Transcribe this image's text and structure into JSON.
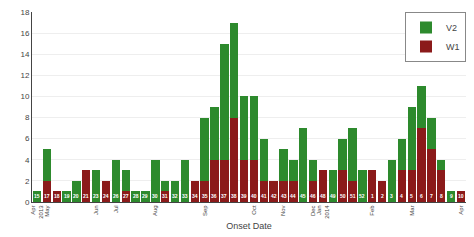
{
  "chart_data": {
    "type": "bar",
    "stacked": true,
    "xlabel": "Onset Date",
    "categories": [
      "Apr\n2013",
      "May",
      null,
      null,
      null,
      null,
      "Jun",
      null,
      "Jul",
      null,
      null,
      null,
      "Aug",
      null,
      null,
      null,
      null,
      "Sep",
      null,
      null,
      null,
      null,
      "Oct",
      null,
      null,
      "Nov",
      null,
      null,
      "Dec",
      "Jan\n2014",
      null,
      null,
      null,
      null,
      "Feb",
      null,
      null,
      null,
      "Mar",
      null,
      null,
      null,
      null,
      "Apr"
    ],
    "series": [
      {
        "name": "W1",
        "color": "#8b1a1a",
        "values": [
          0,
          2,
          1,
          0,
          0,
          3,
          0,
          2,
          0,
          1,
          0,
          0,
          0,
          1,
          0,
          0,
          2,
          2,
          4,
          4,
          8,
          4,
          4,
          2,
          2,
          2,
          2,
          0,
          2,
          3,
          0,
          3,
          2,
          0,
          3,
          2,
          0,
          3,
          3,
          7,
          5,
          3,
          0,
          1
        ]
      },
      {
        "name": "V2",
        "color": "#2d8a2d",
        "values": [
          1,
          3,
          0,
          1,
          2,
          0,
          3,
          0,
          4,
          2,
          1,
          1,
          4,
          1,
          2,
          4,
          0,
          6,
          5,
          11,
          9,
          6,
          6,
          4,
          0,
          3,
          2,
          7,
          2,
          0,
          3,
          3,
          5,
          3,
          0,
          0,
          4,
          3,
          6,
          4,
          3,
          1,
          1,
          0
        ]
      }
    ],
    "annotations": [
      {
        "text": "15",
        "x": 0
      },
      {
        "text": "17",
        "x": 1
      },
      {
        "text": "18",
        "x": 2
      },
      {
        "text": "19",
        "x": 3
      },
      {
        "text": "20",
        "x": 4
      },
      {
        "text": "21",
        "x": 5
      },
      {
        "text": "23",
        "x": 6
      },
      {
        "text": "24",
        "x": 7
      },
      {
        "text": "26",
        "x": 8
      },
      {
        "text": "27",
        "x": 9
      },
      {
        "text": "28",
        "x": 10
      },
      {
        "text": "29",
        "x": 11
      },
      {
        "text": "30",
        "x": 12
      },
      {
        "text": "31",
        "x": 13
      },
      {
        "text": "32",
        "x": 14
      },
      {
        "text": "33",
        "x": 15
      },
      {
        "text": "34",
        "x": 16
      },
      {
        "text": "35",
        "x": 17
      },
      {
        "text": "36",
        "x": 18
      },
      {
        "text": "37",
        "x": 19
      },
      {
        "text": "38",
        "x": 20
      },
      {
        "text": "39",
        "x": 21
      },
      {
        "text": "40",
        "x": 22
      },
      {
        "text": "41",
        "x": 23
      },
      {
        "text": "42",
        "x": 24
      },
      {
        "text": "43",
        "x": 25
      },
      {
        "text": "44",
        "x": 26
      },
      {
        "text": "45",
        "x": 27
      },
      {
        "text": "46",
        "x": 28
      },
      {
        "text": "48",
        "x": 29
      },
      {
        "text": "49",
        "x": 30
      },
      {
        "text": "50",
        "x": 31
      },
      {
        "text": "51",
        "x": 32
      },
      {
        "text": "52",
        "x": 33
      },
      {
        "text": "1",
        "x": 34
      },
      {
        "text": "2",
        "x": 35
      },
      {
        "text": "3",
        "x": 36
      },
      {
        "text": "4",
        "x": 37
      },
      {
        "text": "5",
        "x": 38
      },
      {
        "text": "6",
        "x": 39
      },
      {
        "text": "7",
        "x": 40
      },
      {
        "text": "8",
        "x": 41
      },
      {
        "text": "9",
        "x": 42
      },
      {
        "text": "10",
        "x": 43
      }
    ],
    "ylim": [
      0,
      18
    ],
    "yticks": [
      0,
      2,
      4,
      6,
      8,
      10,
      12,
      14,
      16,
      18
    ],
    "grid": true,
    "legend": "upper right"
  }
}
